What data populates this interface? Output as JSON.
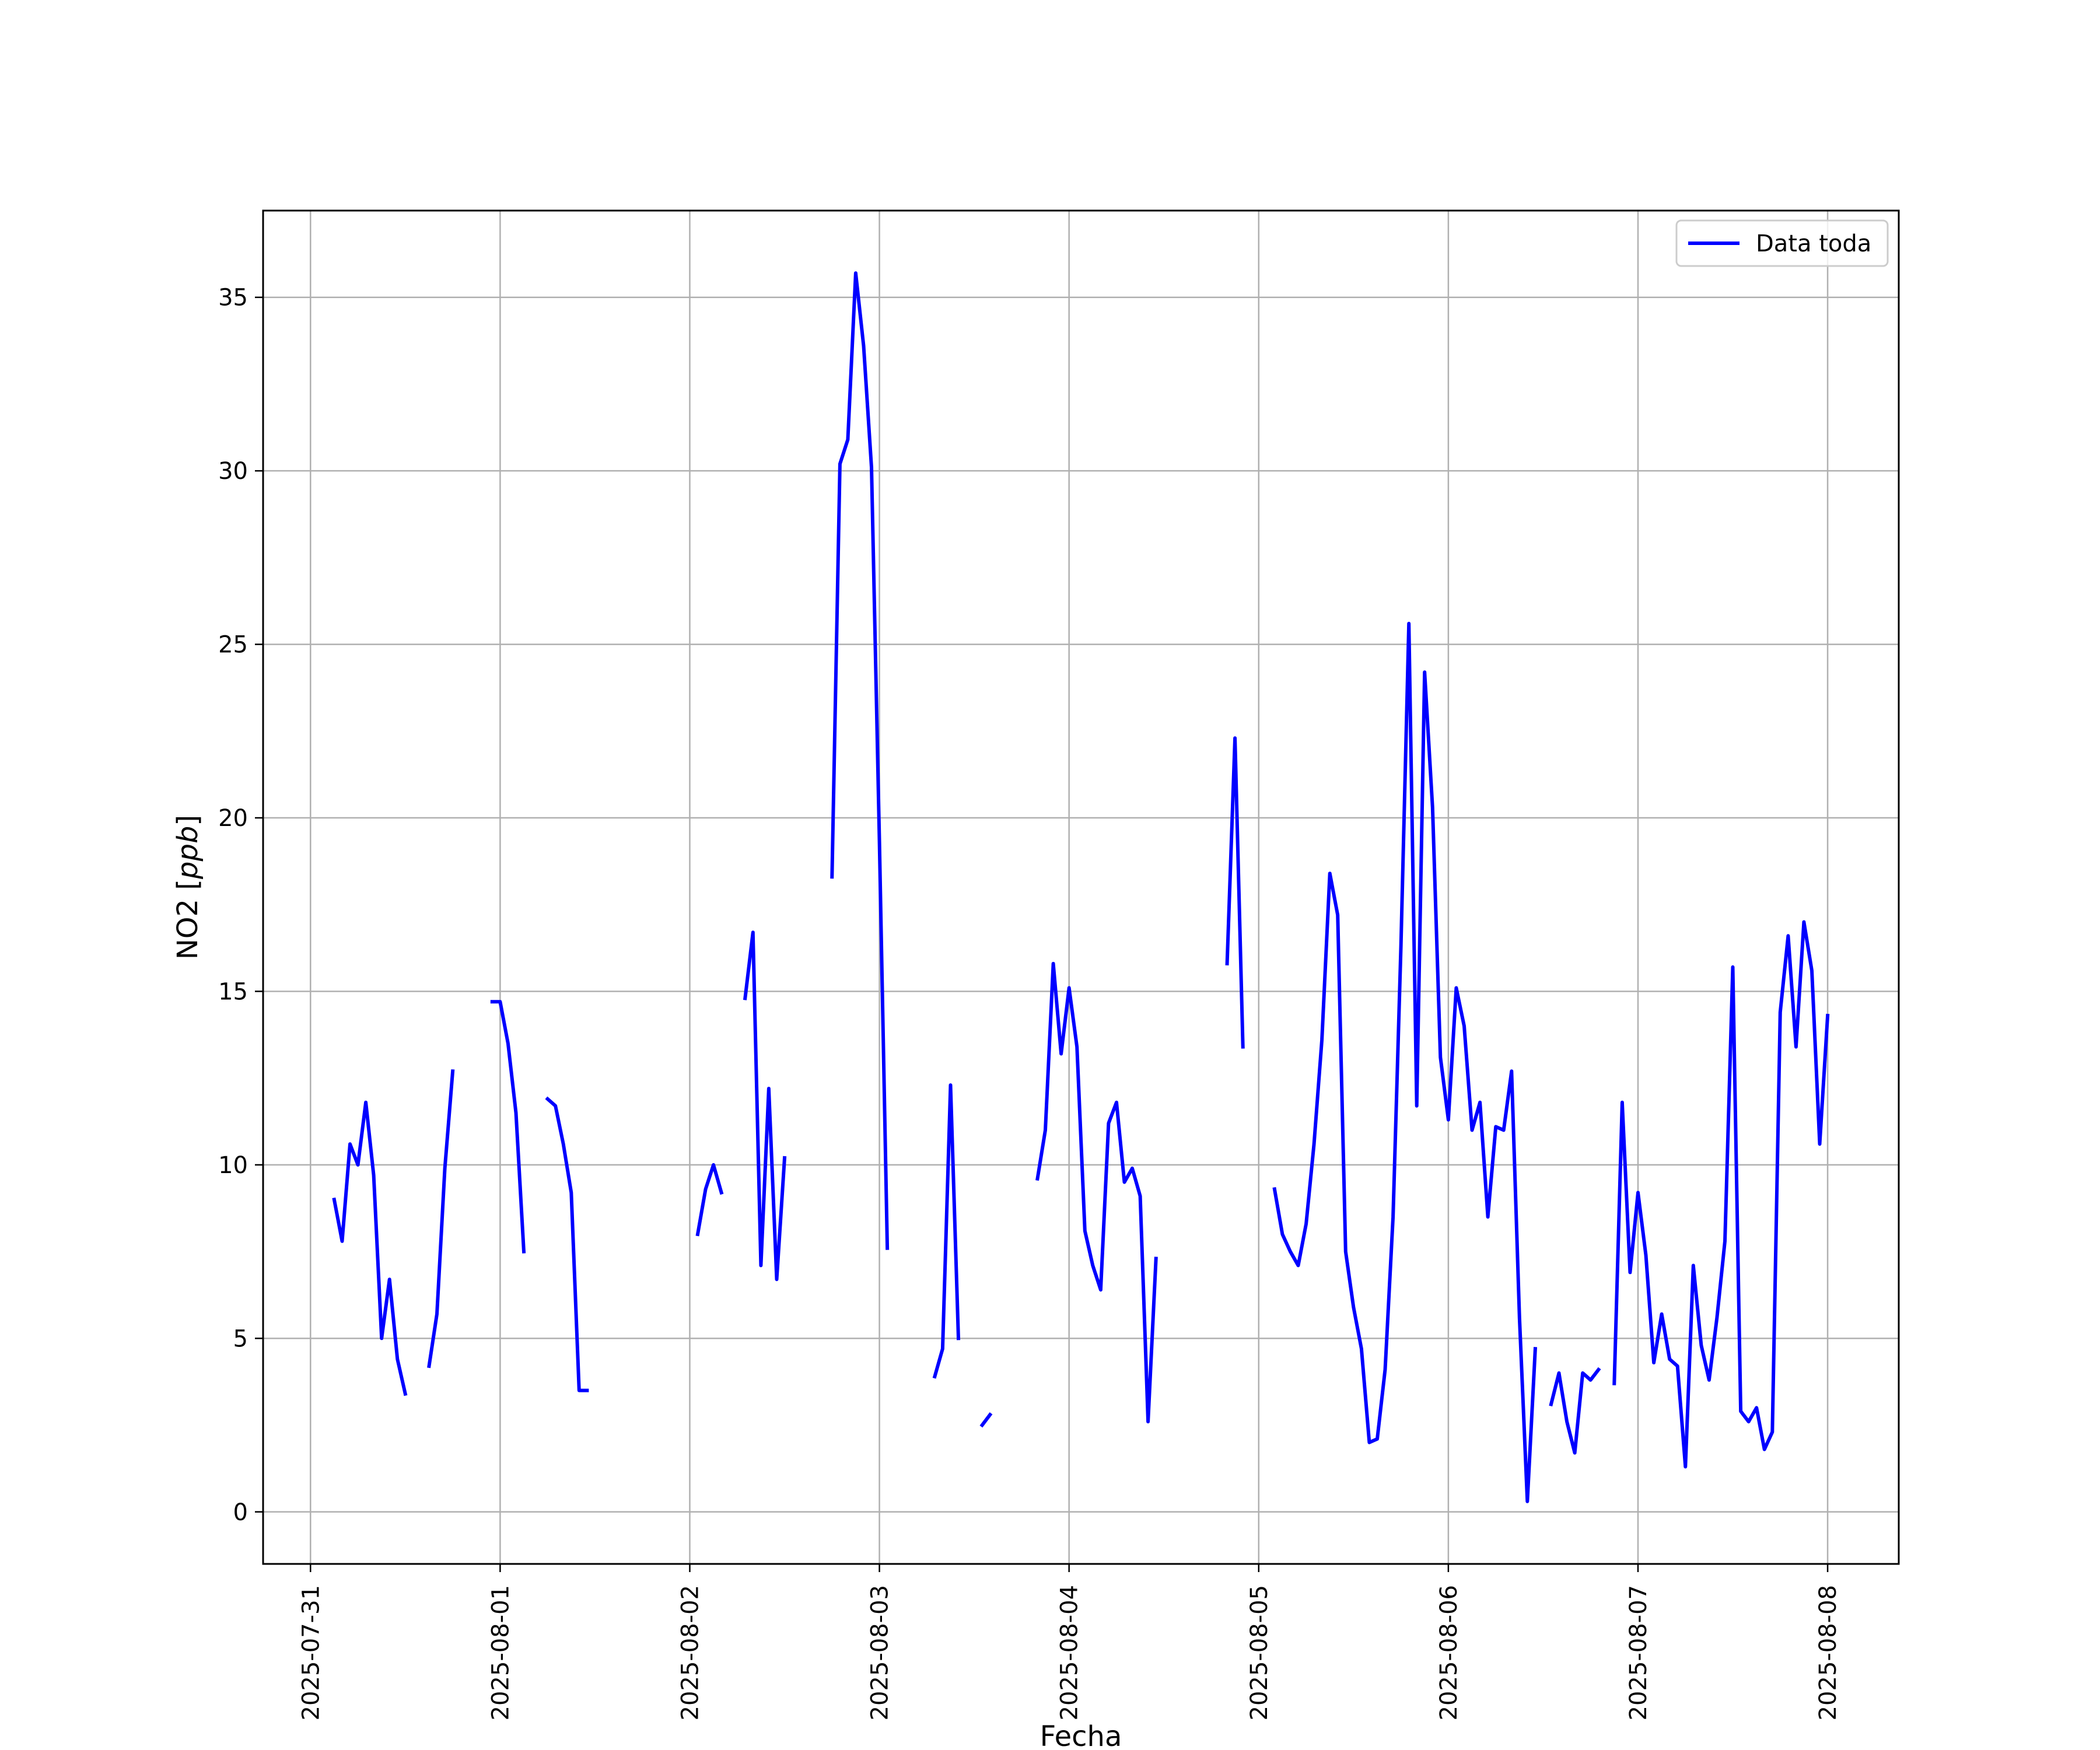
{
  "chart_data": {
    "type": "line",
    "title": "",
    "xlabel": "Fecha",
    "ylabel": "NO2 [ppb]",
    "ylabel_parts": {
      "plain": "NO2 [",
      "italic": "ppb",
      "close": "]"
    },
    "xlim": [
      "2025-07-30T18:00",
      "2025-08-08T09:00"
    ],
    "ylim": [
      -1.5,
      37.5
    ],
    "x_ticks": [
      "2025-07-31",
      "2025-08-01",
      "2025-08-02",
      "2025-08-03",
      "2025-08-04",
      "2025-08-05",
      "2025-08-06",
      "2025-08-07",
      "2025-08-08"
    ],
    "y_ticks": [
      "0",
      "5",
      "10",
      "15",
      "20",
      "25",
      "30",
      "35"
    ],
    "grid": true,
    "legend_position": "top-right",
    "series": [
      {
        "name": "Data toda",
        "color": "#0000ff",
        "segments": [
          [
            [
              "2025-07-31T03:00",
              9.0
            ],
            [
              "2025-07-31T04:00",
              7.8
            ],
            [
              "2025-07-31T05:00",
              10.6
            ],
            [
              "2025-07-31T06:00",
              10.0
            ],
            [
              "2025-07-31T07:00",
              11.8
            ],
            [
              "2025-07-31T08:00",
              9.7
            ],
            [
              "2025-07-31T09:00",
              5.0
            ],
            [
              "2025-07-31T10:00",
              6.7
            ],
            [
              "2025-07-31T11:00",
              4.4
            ],
            [
              "2025-07-31T12:00",
              3.4
            ]
          ],
          [
            [
              "2025-07-31T15:00",
              4.2
            ],
            [
              "2025-07-31T16:00",
              5.7
            ],
            [
              "2025-07-31T17:00",
              9.9
            ],
            [
              "2025-07-31T18:00",
              12.7
            ]
          ],
          [
            [
              "2025-07-31T23:00",
              14.7
            ],
            [
              "2025-08-01T00:00",
              14.7
            ],
            [
              "2025-08-01T01:00",
              13.5
            ],
            [
              "2025-08-01T02:00",
              11.5
            ],
            [
              "2025-08-01T03:00",
              7.5
            ]
          ],
          [
            [
              "2025-08-01T06:00",
              11.9
            ],
            [
              "2025-08-01T07:00",
              11.7
            ],
            [
              "2025-08-01T08:00",
              10.6
            ],
            [
              "2025-08-01T09:00",
              9.2
            ],
            [
              "2025-08-01T10:00",
              3.5
            ],
            [
              "2025-08-01T11:00",
              3.5
            ]
          ],
          [
            [
              "2025-08-02T01:00",
              8.0
            ],
            [
              "2025-08-02T02:00",
              9.3
            ],
            [
              "2025-08-02T03:00",
              10.0
            ],
            [
              "2025-08-02T04:00",
              9.2
            ]
          ],
          [
            [
              "2025-08-02T07:00",
              14.8
            ],
            [
              "2025-08-02T08:00",
              16.7
            ],
            [
              "2025-08-02T09:00",
              7.1
            ],
            [
              "2025-08-02T10:00",
              12.2
            ],
            [
              "2025-08-02T11:00",
              6.7
            ],
            [
              "2025-08-02T12:00",
              10.2
            ]
          ],
          [
            [
              "2025-08-02T18:00",
              18.3
            ],
            [
              "2025-08-02T19:00",
              30.2
            ],
            [
              "2025-08-02T20:00",
              30.9
            ],
            [
              "2025-08-02T21:00",
              35.7
            ],
            [
              "2025-08-02T22:00",
              33.6
            ],
            [
              "2025-08-02T23:00",
              30.1
            ],
            [
              "2025-08-03T00:00",
              19.3
            ],
            [
              "2025-08-03T01:00",
              7.6
            ]
          ],
          [
            [
              "2025-08-03T07:00",
              3.9
            ],
            [
              "2025-08-03T08:00",
              4.7
            ],
            [
              "2025-08-03T09:00",
              12.3
            ],
            [
              "2025-08-03T10:00",
              5.0
            ]
          ],
          [
            [
              "2025-08-03T13:00",
              2.5
            ],
            [
              "2025-08-03T14:00",
              2.8
            ]
          ],
          [
            [
              "2025-08-03T20:00",
              9.6
            ],
            [
              "2025-08-03T21:00",
              11.0
            ],
            [
              "2025-08-03T22:00",
              15.8
            ],
            [
              "2025-08-03T23:00",
              13.2
            ],
            [
              "2025-08-04T00:00",
              15.1
            ],
            [
              "2025-08-04T01:00",
              13.4
            ],
            [
              "2025-08-04T02:00",
              8.1
            ],
            [
              "2025-08-04T03:00",
              7.1
            ],
            [
              "2025-08-04T04:00",
              6.4
            ],
            [
              "2025-08-04T05:00",
              11.2
            ],
            [
              "2025-08-04T06:00",
              11.8
            ],
            [
              "2025-08-04T07:00",
              9.5
            ],
            [
              "2025-08-04T08:00",
              9.9
            ],
            [
              "2025-08-04T09:00",
              9.1
            ],
            [
              "2025-08-04T10:00",
              2.6
            ],
            [
              "2025-08-04T11:00",
              7.3
            ]
          ],
          [
            [
              "2025-08-04T20:00",
              15.8
            ],
            [
              "2025-08-04T21:00",
              22.3
            ],
            [
              "2025-08-04T22:00",
              13.4
            ]
          ],
          [
            [
              "2025-08-05T02:00",
              9.3
            ],
            [
              "2025-08-05T03:00",
              8.0
            ],
            [
              "2025-08-05T04:00",
              7.5
            ],
            [
              "2025-08-05T05:00",
              7.1
            ],
            [
              "2025-08-05T06:00",
              8.3
            ],
            [
              "2025-08-05T07:00",
              10.6
            ],
            [
              "2025-08-05T08:00",
              13.6
            ],
            [
              "2025-08-05T09:00",
              18.4
            ],
            [
              "2025-08-05T10:00",
              17.2
            ],
            [
              "2025-08-05T11:00",
              7.5
            ],
            [
              "2025-08-05T12:00",
              5.9
            ],
            [
              "2025-08-05T13:00",
              4.7
            ],
            [
              "2025-08-05T14:00",
              2.0
            ],
            [
              "2025-08-05T15:00",
              2.1
            ],
            [
              "2025-08-05T16:00",
              4.1
            ],
            [
              "2025-08-05T17:00",
              8.5
            ],
            [
              "2025-08-05T18:00",
              16.3
            ],
            [
              "2025-08-05T19:00",
              25.6
            ],
            [
              "2025-08-05T20:00",
              11.7
            ],
            [
              "2025-08-05T21:00",
              24.2
            ],
            [
              "2025-08-05T22:00",
              20.3
            ],
            [
              "2025-08-05T23:00",
              13.1
            ],
            [
              "2025-08-06T00:00",
              11.3
            ],
            [
              "2025-08-06T01:00",
              15.1
            ],
            [
              "2025-08-06T02:00",
              14.0
            ],
            [
              "2025-08-06T03:00",
              11.0
            ],
            [
              "2025-08-06T04:00",
              11.8
            ],
            [
              "2025-08-06T05:00",
              8.5
            ],
            [
              "2025-08-06T06:00",
              11.1
            ],
            [
              "2025-08-06T07:00",
              11.0
            ],
            [
              "2025-08-06T08:00",
              12.7
            ],
            [
              "2025-08-06T09:00",
              5.6
            ],
            [
              "2025-08-06T10:00",
              0.3
            ],
            [
              "2025-08-06T11:00",
              4.7
            ]
          ],
          [
            [
              "2025-08-06T13:00",
              3.1
            ],
            [
              "2025-08-06T14:00",
              4.0
            ],
            [
              "2025-08-06T15:00",
              2.6
            ],
            [
              "2025-08-06T16:00",
              1.7
            ],
            [
              "2025-08-06T17:00",
              4.0
            ],
            [
              "2025-08-06T18:00",
              3.8
            ],
            [
              "2025-08-06T19:00",
              4.1
            ]
          ],
          [
            [
              "2025-08-06T21:00",
              3.7
            ],
            [
              "2025-08-06T22:00",
              11.8
            ],
            [
              "2025-08-06T23:00",
              6.9
            ],
            [
              "2025-08-07T00:00",
              9.2
            ],
            [
              "2025-08-07T01:00",
              7.4
            ],
            [
              "2025-08-07T02:00",
              4.3
            ],
            [
              "2025-08-07T03:00",
              5.7
            ],
            [
              "2025-08-07T04:00",
              4.4
            ],
            [
              "2025-08-07T05:00",
              4.2
            ],
            [
              "2025-08-07T06:00",
              1.3
            ],
            [
              "2025-08-07T07:00",
              7.1
            ],
            [
              "2025-08-07T08:00",
              4.8
            ],
            [
              "2025-08-07T09:00",
              3.8
            ],
            [
              "2025-08-07T10:00",
              5.6
            ],
            [
              "2025-08-07T11:00",
              7.8
            ],
            [
              "2025-08-07T12:00",
              15.7
            ],
            [
              "2025-08-07T13:00",
              2.9
            ],
            [
              "2025-08-07T14:00",
              2.6
            ],
            [
              "2025-08-07T15:00",
              3.0
            ],
            [
              "2025-08-07T16:00",
              1.8
            ],
            [
              "2025-08-07T17:00",
              2.3
            ],
            [
              "2025-08-07T18:00",
              14.4
            ],
            [
              "2025-08-07T19:00",
              16.6
            ],
            [
              "2025-08-07T20:00",
              13.4
            ],
            [
              "2025-08-07T21:00",
              17.0
            ],
            [
              "2025-08-07T22:00",
              15.6
            ],
            [
              "2025-08-07T23:00",
              10.6
            ],
            [
              "2025-08-08T00:00",
              14.3
            ]
          ]
        ]
      }
    ]
  }
}
